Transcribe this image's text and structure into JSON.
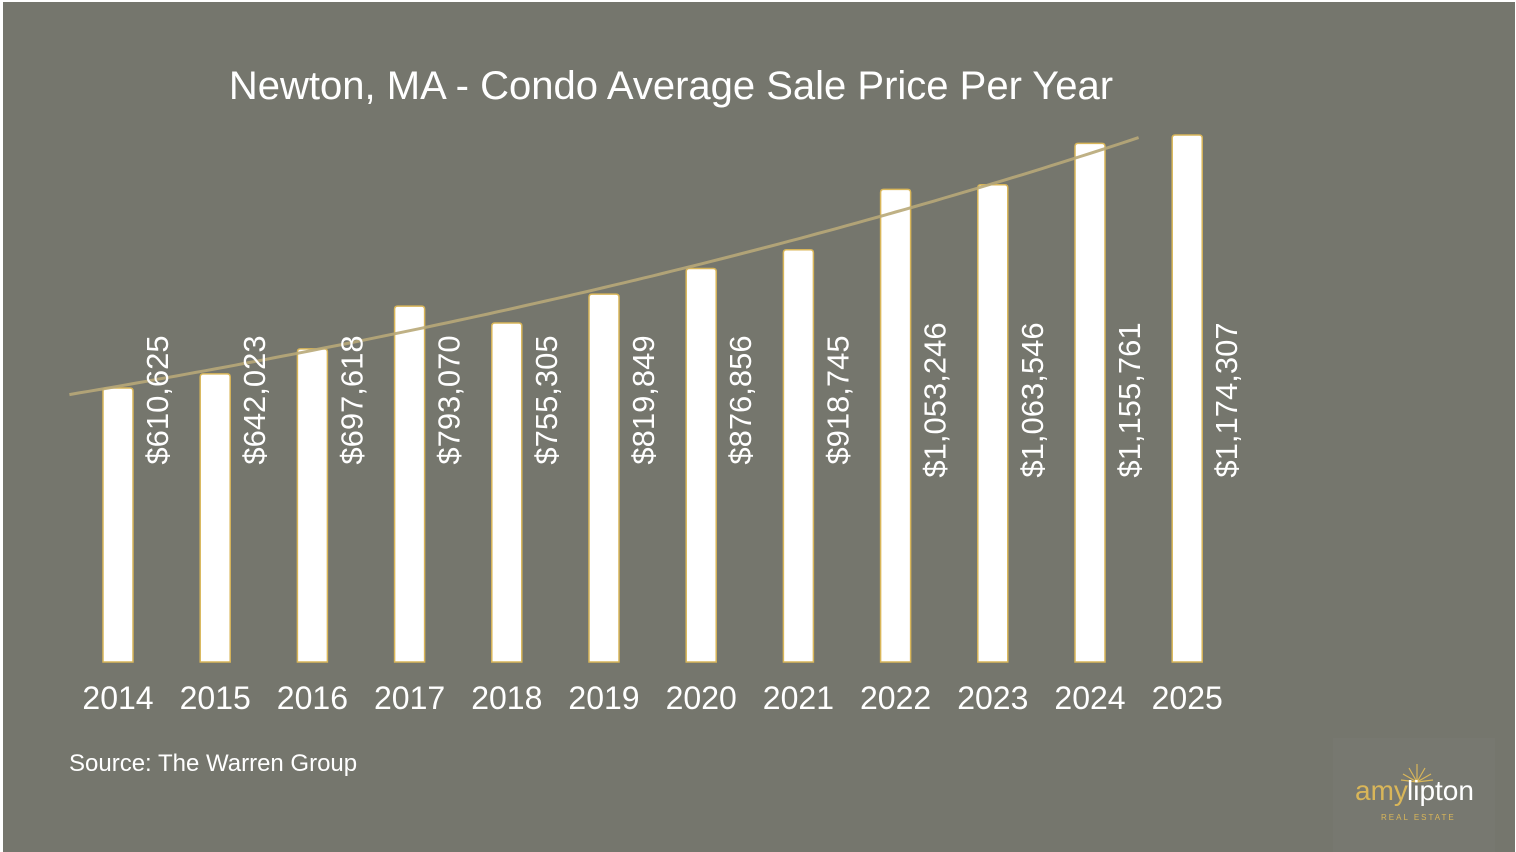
{
  "chart_data": {
    "type": "bar",
    "title": "Newton, MA - Condo Average Sale Price Per Year",
    "categories": [
      "2014",
      "2015",
      "2016",
      "2017",
      "2018",
      "2019",
      "2020",
      "2021",
      "2022",
      "2023",
      "2024",
      "2025"
    ],
    "values": [
      610625,
      642023,
      697618,
      793070,
      755305,
      819849,
      876856,
      918745,
      1053246,
      1063546,
      1155761,
      1174307
    ],
    "data_labels": [
      "$610,625",
      "$642,023",
      "$697,618",
      "$793,070",
      "$755,305",
      "$819,849",
      "$876,856",
      "$918,745",
      "$1,053,246",
      "$1,063,546",
      "$1,155,761",
      "$1,174,307"
    ],
    "xlabel": "",
    "ylabel": "",
    "ylim": [
      0,
      1174307
    ],
    "trendline": "exponential",
    "grid": false,
    "legend": "none",
    "colors": {
      "background": "#75766d",
      "bar_fill": "#ffffff",
      "bar_outline": "#d9b659",
      "trendline": "#b8a878",
      "text": "#ffffff"
    }
  },
  "source": "Source: The Warren Group",
  "logo": {
    "name": "amylipton",
    "sub": "REAL ESTATE"
  }
}
